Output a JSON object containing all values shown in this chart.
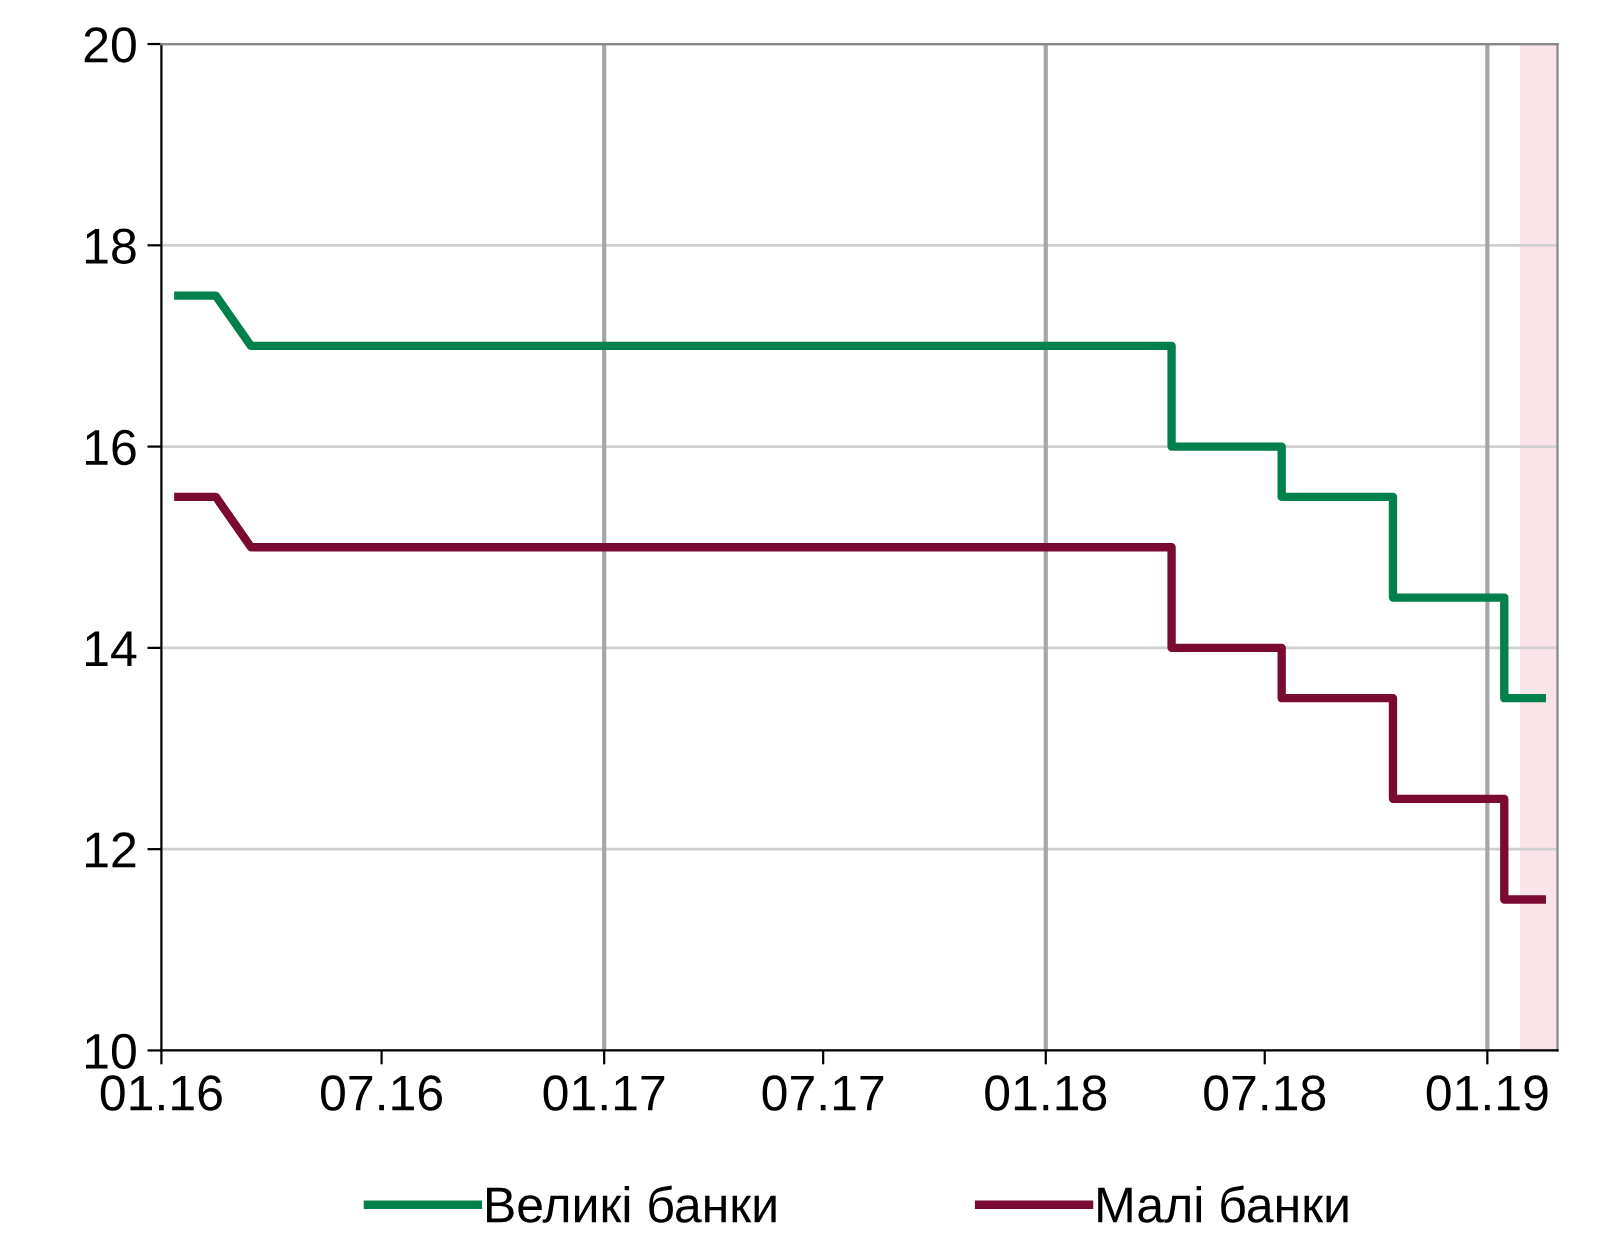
{
  "chart_data": {
    "type": "line",
    "x": [
      "2016-01-15",
      "2016-02-15",
      "2016-03-15",
      "2018-04-15",
      "2018-04-15",
      "2018-07-15",
      "2018-07-15",
      "2018-10-15",
      "2018-10-15",
      "2019-01-15",
      "2019-01-15",
      "2019-02-15"
    ],
    "series": [
      {
        "name": "Великі банки",
        "color": "#00804a",
        "values": [
          17.5,
          17.5,
          17,
          17,
          16,
          16,
          15.5,
          15.5,
          14.5,
          14.5,
          13.5,
          13.5
        ]
      },
      {
        "name": "Малі банки",
        "color": "#7b0a32",
        "values": [
          15.5,
          15.5,
          15,
          15,
          14,
          14,
          13.5,
          13.5,
          12.5,
          12.5,
          11.5,
          11.5
        ]
      }
    ],
    "xlim": [
      "2016-01-01",
      "2019-02-28"
    ],
    "xticks": [
      {
        "value": "2016-01-01",
        "label": "01.16"
      },
      {
        "value": "2016-07-01",
        "label": "07.16"
      },
      {
        "value": "2017-01-01",
        "label": "01.17"
      },
      {
        "value": "2017-07-01",
        "label": "07.17"
      },
      {
        "value": "2018-01-01",
        "label": "01.18"
      },
      {
        "value": "2018-07-01",
        "label": "07.18"
      },
      {
        "value": "2019-01-01",
        "label": "01.19"
      }
    ],
    "ylim": [
      10,
      20
    ],
    "yticks": [
      10,
      12,
      14,
      16,
      18,
      20
    ],
    "grid": "y",
    "legend": "bottom",
    "marker": "none",
    "line_style": "solid",
    "ref_lines": [
      {
        "axis": "x",
        "value": "2017-01-01",
        "label": null,
        "color": "#a6a6a6"
      },
      {
        "axis": "x",
        "value": "2018-01-01",
        "label": null,
        "color": "#a6a6a6"
      },
      {
        "axis": "x",
        "value": "2019-01-01",
        "label": null,
        "color": "#a6a6a6"
      }
    ],
    "bands": [
      {
        "axis": "x",
        "from": "2019-01-28",
        "to": "2019-02-28",
        "label": null,
        "color": "#fbe3ea"
      }
    ]
  }
}
